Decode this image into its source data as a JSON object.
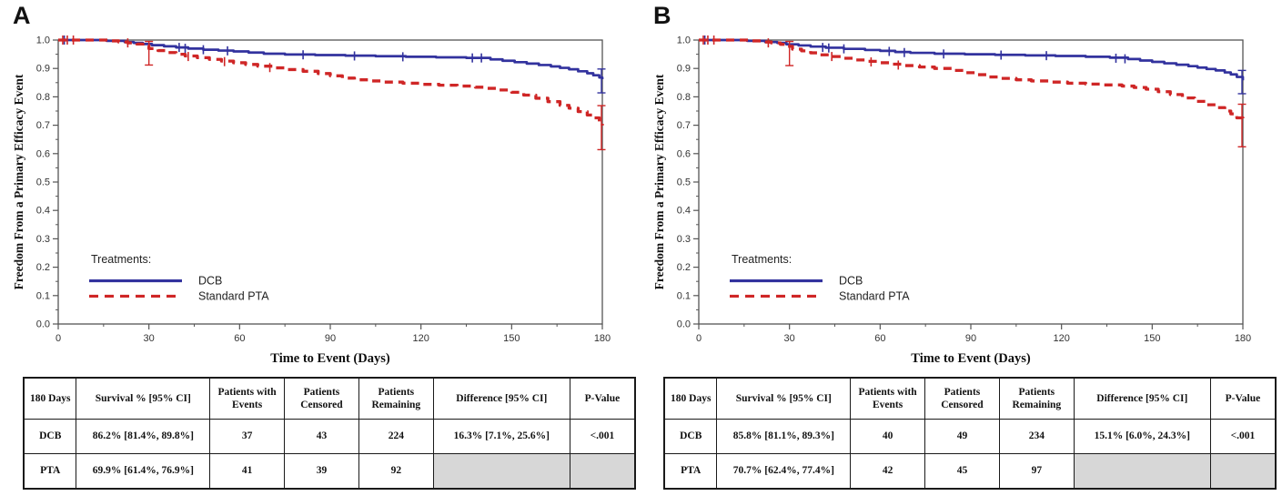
{
  "colors": {
    "dcb": "#32329e",
    "pta": "#cf2626",
    "frame": "#555555",
    "tick_text": "#333333",
    "axis_title": "#111111",
    "table_gray": "#d7d7d7"
  },
  "legend": {
    "title": "Treatments:",
    "items": [
      {
        "label": "DCB",
        "style": "solid",
        "color": "#32329e"
      },
      {
        "label": "Standard PTA",
        "style": "dashed",
        "color": "#cf2626"
      }
    ]
  },
  "panels": [
    {
      "label": "A",
      "chart_data": {
        "type": "line",
        "subtype": "kaplan-meier-step",
        "xlabel": "Time to Event (Days)",
        "ylabel": "Freedom From a Primary Efficacy Event",
        "xlim": [
          0,
          180
        ],
        "ylim": [
          0.0,
          1.0
        ],
        "xticks": [
          0,
          30,
          60,
          90,
          120,
          150,
          180
        ],
        "yticks": [
          0.0,
          0.1,
          0.2,
          0.3,
          0.4,
          0.5,
          0.6,
          0.7,
          0.8,
          0.9,
          1.0
        ],
        "grid": false,
        "legend_position": "inside-lower-left",
        "series": [
          {
            "name": "DCB",
            "color": "#32329e",
            "style": "solid",
            "points": [
              [
                0,
                1
              ],
              [
                14,
                1
              ],
              [
                16,
                0.997
              ],
              [
                22,
                0.993
              ],
              [
                25,
                0.99
              ],
              [
                28,
                0.986
              ],
              [
                31,
                0.982
              ],
              [
                35,
                0.978
              ],
              [
                39,
                0.974
              ],
              [
                43,
                0.97
              ],
              [
                48,
                0.966
              ],
              [
                53,
                0.963
              ],
              [
                58,
                0.96
              ],
              [
                63,
                0.956
              ],
              [
                68,
                0.952
              ],
              [
                75,
                0.949
              ],
              [
                85,
                0.947
              ],
              [
                95,
                0.945
              ],
              [
                105,
                0.943
              ],
              [
                115,
                0.941
              ],
              [
                125,
                0.939
              ],
              [
                135,
                0.937
              ],
              [
                143,
                0.932
              ],
              [
                147,
                0.927
              ],
              [
                151,
                0.922
              ],
              [
                155,
                0.917
              ],
              [
                159,
                0.912
              ],
              [
                163,
                0.907
              ],
              [
                166,
                0.902
              ],
              [
                169,
                0.897
              ],
              [
                172,
                0.89
              ],
              [
                175,
                0.883
              ],
              [
                177,
                0.876
              ],
              [
                179,
                0.868
              ],
              [
                180,
                0.862
              ]
            ],
            "censors": [
              [
                2,
                1
              ],
              [
                40,
                0.974
              ],
              [
                42,
                0.971
              ],
              [
                48,
                0.966
              ],
              [
                56,
                0.962
              ],
              [
                81,
                0.948
              ],
              [
                98,
                0.944
              ],
              [
                114,
                0.941
              ],
              [
                137,
                0.937
              ],
              [
                140,
                0.937
              ]
            ],
            "error_bars": [
              {
                "x": 180,
                "lo": 0.814,
                "hi": 0.898
              }
            ]
          },
          {
            "name": "Standard PTA",
            "color": "#cf2626",
            "style": "dashed",
            "points": [
              [
                0,
                1
              ],
              [
                14,
                1
              ],
              [
                17,
                0.997
              ],
              [
                20,
                0.993
              ],
              [
                23,
                0.99
              ],
              [
                26,
                0.986
              ],
              [
                28,
                0.98
              ],
              [
                30,
                0.97
              ],
              [
                33,
                0.963
              ],
              [
                36,
                0.956
              ],
              [
                39,
                0.95
              ],
              [
                42,
                0.944
              ],
              [
                46,
                0.938
              ],
              [
                50,
                0.932
              ],
              [
                54,
                0.926
              ],
              [
                58,
                0.92
              ],
              [
                62,
                0.914
              ],
              [
                66,
                0.908
              ],
              [
                71,
                0.902
              ],
              [
                76,
                0.896
              ],
              [
                81,
                0.89
              ],
              [
                86,
                0.882
              ],
              [
                90,
                0.874
              ],
              [
                94,
                0.866
              ],
              [
                98,
                0.86
              ],
              [
                103,
                0.856
              ],
              [
                108,
                0.852
              ],
              [
                114,
                0.848
              ],
              [
                120,
                0.844
              ],
              [
                126,
                0.841
              ],
              [
                132,
                0.838
              ],
              [
                138,
                0.834
              ],
              [
                142,
                0.83
              ],
              [
                146,
                0.824
              ],
              [
                150,
                0.816
              ],
              [
                154,
                0.806
              ],
              [
                158,
                0.795
              ],
              [
                162,
                0.783
              ],
              [
                166,
                0.77
              ],
              [
                169,
                0.76
              ],
              [
                172,
                0.748
              ],
              [
                175,
                0.736
              ],
              [
                177,
                0.726
              ],
              [
                179,
                0.712
              ],
              [
                180,
                0.699
              ]
            ],
            "censors": [
              [
                1.5,
                1
              ],
              [
                3,
                1
              ],
              [
                5,
                1
              ],
              [
                23,
                0.99
              ],
              [
                43,
                0.942
              ],
              [
                55,
                0.924
              ],
              [
                70,
                0.903
              ]
            ],
            "error_bars": [
              {
                "x": 30,
                "lo": 0.912,
                "hi": 0.995
              },
              {
                "x": 180,
                "lo": 0.614,
                "hi": 0.769
              }
            ]
          }
        ]
      },
      "table": {
        "headers": [
          "180 Days",
          "Survival % [95% CI]",
          "Patients with Events",
          "Patients Censored",
          "Patients Remaining",
          "Difference [95% CI]",
          "P-Value"
        ],
        "rows": [
          {
            "cells": [
              "DCB",
              "86.2% [81.4%, 89.8%]",
              "37",
              "43",
              "224",
              "16.3% [7.1%, 25.6%]",
              "<.001"
            ],
            "gray": []
          },
          {
            "cells": [
              "PTA",
              "69.9% [61.4%, 76.9%]",
              "41",
              "39",
              "92",
              "",
              ""
            ],
            "gray": [
              5,
              6
            ]
          }
        ]
      }
    },
    {
      "label": "B",
      "chart_data": {
        "type": "line",
        "subtype": "kaplan-meier-step",
        "xlabel": "Time to Event (Days)",
        "ylabel": "Freedom From a Primary Efficacy Event",
        "xlim": [
          0,
          180
        ],
        "ylim": [
          0.0,
          1.0
        ],
        "xticks": [
          0,
          30,
          60,
          90,
          120,
          150,
          180
        ],
        "yticks": [
          0.0,
          0.1,
          0.2,
          0.3,
          0.4,
          0.5,
          0.6,
          0.7,
          0.8,
          0.9,
          1.0
        ],
        "grid": false,
        "legend_position": "inside-lower-left",
        "series": [
          {
            "name": "DCB",
            "color": "#32329e",
            "style": "solid",
            "points": [
              [
                0,
                1
              ],
              [
                14,
                1
              ],
              [
                16,
                0.997
              ],
              [
                22,
                0.993
              ],
              [
                26,
                0.99
              ],
              [
                29,
                0.985
              ],
              [
                33,
                0.981
              ],
              [
                37,
                0.977
              ],
              [
                42,
                0.973
              ],
              [
                48,
                0.969
              ],
              [
                55,
                0.965
              ],
              [
                60,
                0.962
              ],
              [
                65,
                0.958
              ],
              [
                70,
                0.955
              ],
              [
                78,
                0.952
              ],
              [
                88,
                0.95
              ],
              [
                98,
                0.948
              ],
              [
                108,
                0.946
              ],
              [
                118,
                0.944
              ],
              [
                128,
                0.941
              ],
              [
                136,
                0.938
              ],
              [
                142,
                0.933
              ],
              [
                146,
                0.928
              ],
              [
                150,
                0.923
              ],
              [
                154,
                0.918
              ],
              [
                158,
                0.913
              ],
              [
                162,
                0.908
              ],
              [
                165,
                0.903
              ],
              [
                168,
                0.898
              ],
              [
                171,
                0.893
              ],
              [
                174,
                0.886
              ],
              [
                176,
                0.879
              ],
              [
                178,
                0.87
              ],
              [
                180,
                0.858
              ]
            ],
            "censors": [
              [
                2,
                1
              ],
              [
                41,
                0.974
              ],
              [
                43,
                0.972
              ],
              [
                48,
                0.969
              ],
              [
                63,
                0.96
              ],
              [
                68,
                0.956
              ],
              [
                81,
                0.951
              ],
              [
                100,
                0.947
              ],
              [
                115,
                0.945
              ],
              [
                138,
                0.936
              ],
              [
                141,
                0.934
              ]
            ],
            "error_bars": [
              {
                "x": 180,
                "lo": 0.811,
                "hi": 0.893
              }
            ]
          },
          {
            "name": "Standard PTA",
            "color": "#cf2626",
            "style": "dashed",
            "points": [
              [
                0,
                1
              ],
              [
                14,
                1
              ],
              [
                17,
                0.997
              ],
              [
                21,
                0.993
              ],
              [
                24,
                0.99
              ],
              [
                27,
                0.985
              ],
              [
                29,
                0.978
              ],
              [
                31,
                0.968
              ],
              [
                34,
                0.962
              ],
              [
                37,
                0.955
              ],
              [
                40,
                0.948
              ],
              [
                44,
                0.942
              ],
              [
                48,
                0.936
              ],
              [
                52,
                0.93
              ],
              [
                56,
                0.925
              ],
              [
                60,
                0.92
              ],
              [
                64,
                0.915
              ],
              [
                68,
                0.91
              ],
              [
                73,
                0.905
              ],
              [
                78,
                0.9
              ],
              [
                84,
                0.893
              ],
              [
                88,
                0.885
              ],
              [
                92,
                0.878
              ],
              [
                96,
                0.87
              ],
              [
                100,
                0.865
              ],
              [
                105,
                0.86
              ],
              [
                110,
                0.856
              ],
              [
                116,
                0.852
              ],
              [
                122,
                0.848
              ],
              [
                128,
                0.845
              ],
              [
                134,
                0.842
              ],
              [
                140,
                0.838
              ],
              [
                144,
                0.833
              ],
              [
                148,
                0.827
              ],
              [
                152,
                0.818
              ],
              [
                156,
                0.808
              ],
              [
                160,
                0.796
              ],
              [
                164,
                0.784
              ],
              [
                168,
                0.772
              ],
              [
                171,
                0.762
              ],
              [
                174,
                0.75
              ],
              [
                176,
                0.74
              ],
              [
                178,
                0.726
              ],
              [
                180,
                0.707
              ]
            ],
            "censors": [
              [
                1.5,
                1
              ],
              [
                3,
                1
              ],
              [
                5,
                1
              ],
              [
                23,
                0.99
              ],
              [
                44,
                0.942
              ],
              [
                57,
                0.923
              ],
              [
                66,
                0.912
              ]
            ],
            "error_bars": [
              {
                "x": 30,
                "lo": 0.91,
                "hi": 0.995
              },
              {
                "x": 180,
                "lo": 0.624,
                "hi": 0.774
              }
            ]
          }
        ]
      },
      "table": {
        "headers": [
          "180 Days",
          "Survival % [95% CI]",
          "Patients with Events",
          "Patients Censored",
          "Patients Remaining",
          "Difference [95% CI]",
          "P-Value"
        ],
        "rows": [
          {
            "cells": [
              "DCB",
              "85.8% [81.1%, 89.3%]",
              "40",
              "49",
              "234",
              "15.1% [6.0%, 24.3%]",
              "<.001"
            ],
            "gray": []
          },
          {
            "cells": [
              "PTA",
              "70.7% [62.4%, 77.4%]",
              "42",
              "45",
              "97",
              "",
              ""
            ],
            "gray": [
              5,
              6
            ]
          }
        ]
      }
    }
  ]
}
